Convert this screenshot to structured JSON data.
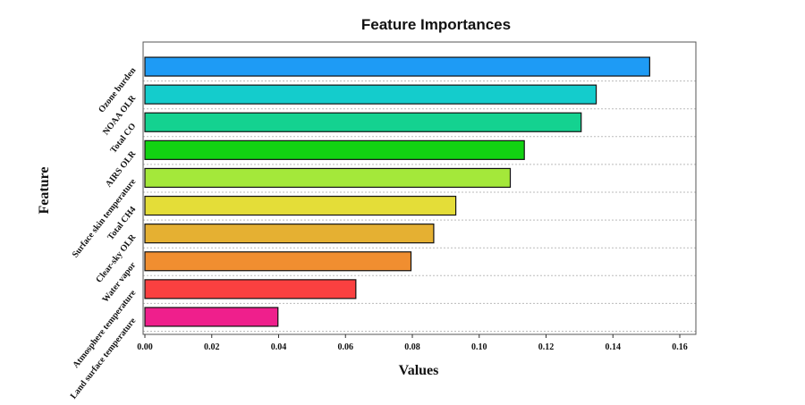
{
  "chart_data": {
    "type": "bar",
    "orientation": "horizontal",
    "title": "Feature Importances",
    "xlabel": "Values",
    "ylabel": "Feature",
    "xlim": [
      0,
      0.16
    ],
    "xticks": [
      "0.00",
      "0.02",
      "0.04",
      "0.06",
      "0.08",
      "0.10",
      "0.12",
      "0.14",
      "0.16"
    ],
    "categories": [
      "Ozone burden",
      "NOAA OLR",
      "Total CO",
      "AIRS OLR",
      "Surface skin temperature",
      "Total CH4",
      "Clear-sky OLR",
      "Water vapor",
      "Atmosphere temperature",
      "Land surface temperature"
    ],
    "values": [
      0.151,
      0.135,
      0.1305,
      0.1135,
      0.1093,
      0.093,
      0.0864,
      0.0796,
      0.0631,
      0.0398
    ],
    "colors": [
      "#1e9bf5",
      "#14cccc",
      "#14d290",
      "#12d212",
      "#a4e83a",
      "#e4dd38",
      "#e5b032",
      "#f08e30",
      "#fa4040",
      "#ef1f8c"
    ],
    "grid": "horizontal dotted",
    "legend": "none"
  }
}
